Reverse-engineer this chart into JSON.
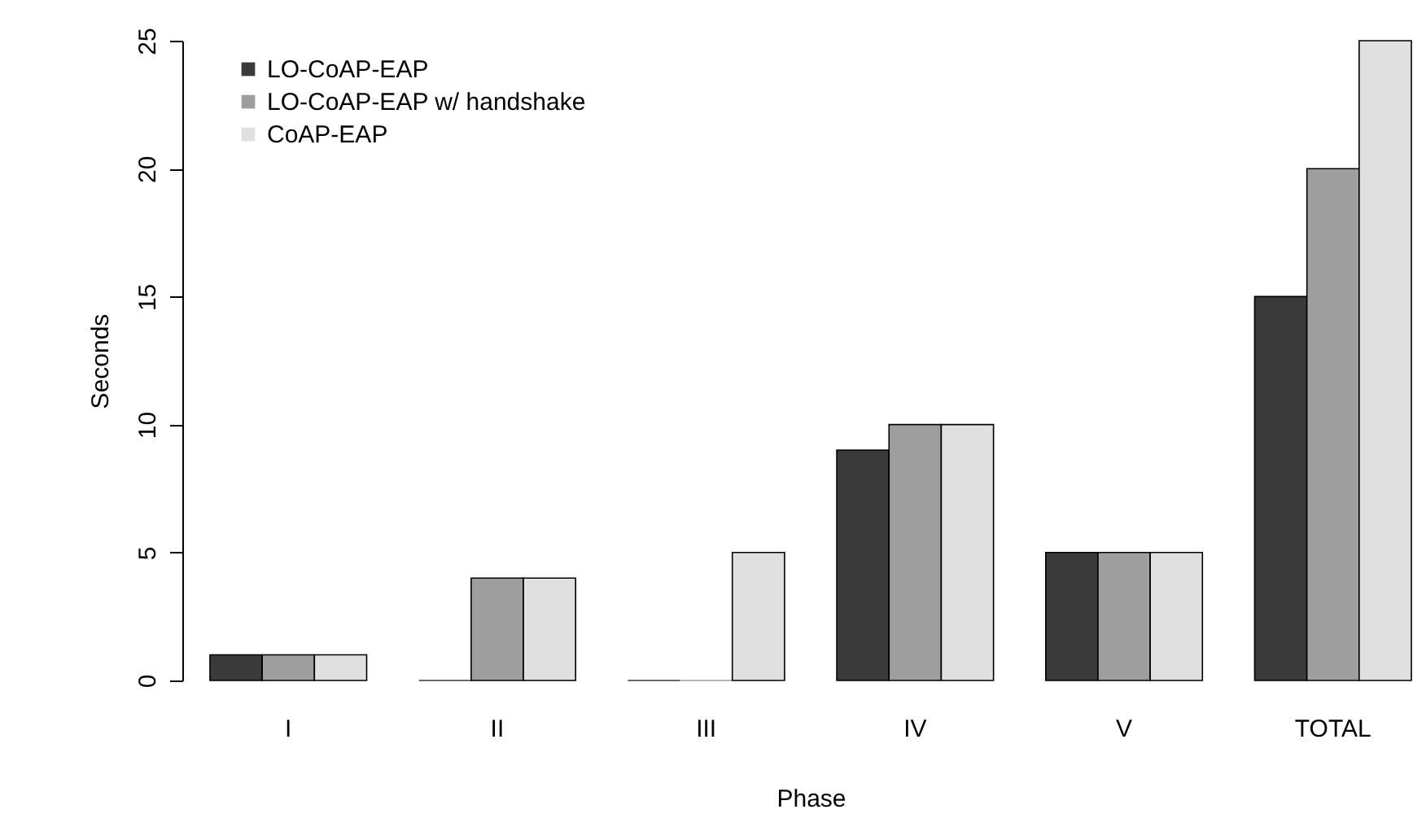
{
  "chart_data": {
    "type": "bar",
    "xlabel": "Phase",
    "ylabel": "Seconds",
    "categories": [
      "I",
      "II",
      "III",
      "IV",
      "V",
      "TOTAL"
    ],
    "series": [
      {
        "name": "LO-CoAP-EAP",
        "color": "#3a3a3a",
        "values": [
          1,
          0,
          0,
          9,
          5,
          15
        ]
      },
      {
        "name": "LO-CoAP-EAP  w/ handshake",
        "color": "#9e9e9e",
        "values": [
          1,
          4,
          0,
          10,
          5,
          20
        ]
      },
      {
        "name": "CoAP-EAP",
        "color": "#e0e0e0",
        "values": [
          1,
          4,
          5,
          10,
          5,
          25
        ]
      }
    ],
    "ylim": [
      0,
      25
    ],
    "yticks": [
      0,
      5,
      10,
      15,
      20,
      25
    ],
    "grid": false,
    "legend": "top left"
  }
}
